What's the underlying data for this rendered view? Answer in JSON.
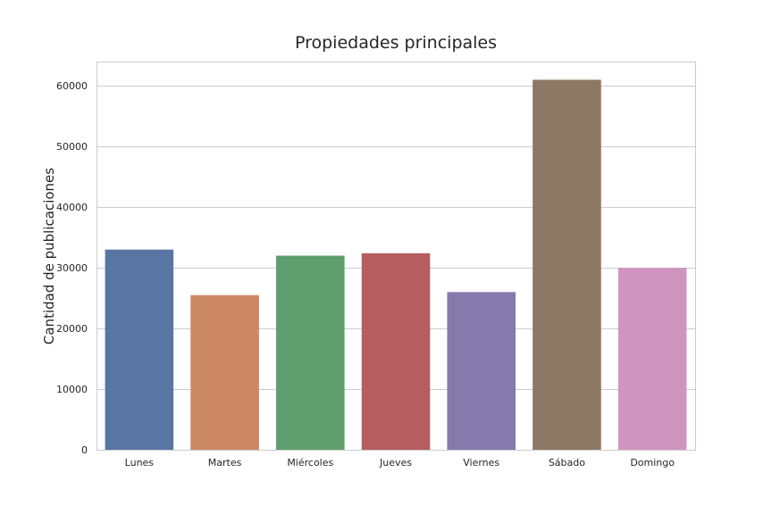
{
  "chart_data": {
    "type": "bar",
    "title": "Propiedades principales",
    "xlabel": "",
    "ylabel": "Cantidad de publicaciones",
    "categories": [
      "Lunes",
      "Martes",
      "Miércoles",
      "Jueves",
      "Viernes",
      "Sábado",
      "Domingo"
    ],
    "values": [
      33000,
      25500,
      32000,
      32400,
      26000,
      61000,
      30000
    ],
    "colors": [
      "#5975a4",
      "#cc8963",
      "#5f9e6e",
      "#b55d60",
      "#857aab",
      "#8d7866",
      "#d095bf"
    ],
    "ylim": [
      0,
      64000
    ],
    "yticks": [
      0,
      10000,
      20000,
      30000,
      40000,
      50000,
      60000
    ],
    "ytick_labels": [
      "0",
      "10000",
      "20000",
      "30000",
      "40000",
      "50000",
      "60000"
    ],
    "grid": true,
    "legend": "none"
  }
}
